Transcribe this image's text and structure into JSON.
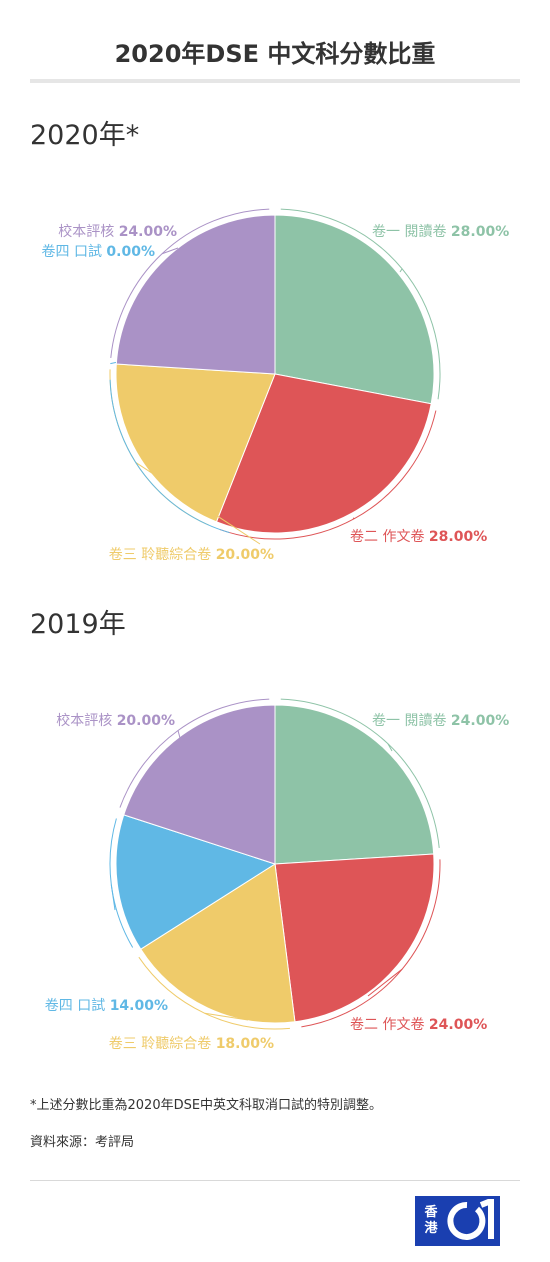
{
  "title": "2020年DSE 中文科分數比重",
  "chart_data": [
    {
      "type": "pie",
      "title": "2020年*",
      "slices": [
        {
          "name": "卷一 閱讀卷",
          "value": 28.0,
          "label": "28.00%",
          "color": "#8ec3a7"
        },
        {
          "name": "卷二 作文卷",
          "value": 28.0,
          "label": "28.00%",
          "color": "#de5557"
        },
        {
          "name": "卷三 聆聽綜合卷",
          "value": 20.0,
          "label": "20.00%",
          "color": "#efcb6a"
        },
        {
          "name": "卷四 口試",
          "value": 0.0,
          "label": "0.00%",
          "color": "#60b8e5"
        },
        {
          "name": "校本評核",
          "value": 24.0,
          "label": "24.00%",
          "color": "#aa92c6"
        }
      ]
    },
    {
      "type": "pie",
      "title": "2019年",
      "slices": [
        {
          "name": "卷一 閱讀卷",
          "value": 24.0,
          "label": "24.00%",
          "color": "#8ec3a7"
        },
        {
          "name": "卷二 作文卷",
          "value": 24.0,
          "label": "24.00%",
          "color": "#de5557"
        },
        {
          "name": "卷三 聆聽綜合卷",
          "value": 18.0,
          "label": "18.00%",
          "color": "#efcb6a"
        },
        {
          "name": "卷四 口試",
          "value": 14.0,
          "label": "14.00%",
          "color": "#60b8e5"
        },
        {
          "name": "校本評核",
          "value": 20.0,
          "label": "20.00%",
          "color": "#aa92c6"
        }
      ]
    }
  ],
  "footnote": "*上述分數比重為2020年DSE中英文科取消口試的特別調整。",
  "source": "資料來源：考評局",
  "logo": {
    "line1": "香",
    "line2": "港"
  }
}
